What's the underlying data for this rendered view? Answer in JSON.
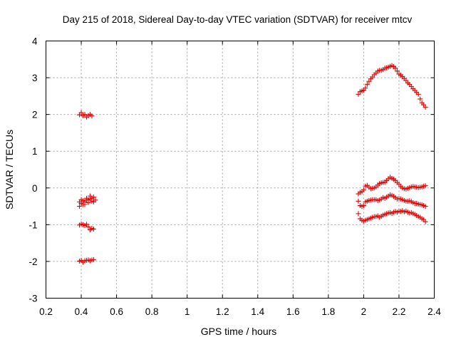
{
  "chart_data": {
    "type": "scatter",
    "title": "Day 215 of 2018, Sidereal Day-to-day VTEC variation (SDTVAR) for receiver mtcv",
    "xlabel": "GPS time / hours",
    "ylabel": "SDTVAR / TECUs",
    "xlim": [
      0.2,
      2.4
    ],
    "ylim": [
      -3,
      4
    ],
    "xticks": [
      0.2,
      0.4,
      0.6,
      0.8,
      1,
      1.2,
      1.4,
      1.6,
      1.8,
      2,
      2.2,
      2.4
    ],
    "xtick_labels": [
      "0.2",
      "0.4",
      "0.6",
      "0.8",
      "1",
      "1.2",
      "1.4",
      "1.6",
      "1.8",
      "2",
      "2.2",
      "2.4"
    ],
    "yticks": [
      -3,
      -2,
      -1,
      0,
      1,
      2,
      3,
      4
    ],
    "ytick_labels": [
      "-3",
      "-2",
      "-1",
      "0",
      "1",
      "2",
      "3",
      "4"
    ],
    "grid": true,
    "marker": "plus",
    "color": "#e00000",
    "series": [
      {
        "points": [
          [
            0.39,
            1.99
          ],
          [
            0.4,
            2.05
          ],
          [
            0.41,
            1.97
          ],
          [
            0.42,
            2.0
          ],
          [
            0.43,
            1.93
          ],
          [
            0.44,
            1.97
          ],
          [
            0.45,
            2.0
          ],
          [
            0.46,
            1.96
          ],
          [
            0.39,
            -0.5
          ],
          [
            0.4,
            -0.32
          ],
          [
            0.41,
            -0.45
          ],
          [
            0.42,
            -0.38
          ],
          [
            0.43,
            -0.33
          ],
          [
            0.44,
            -0.4
          ],
          [
            0.45,
            -0.3
          ],
          [
            0.46,
            -0.36
          ],
          [
            0.47,
            -0.25
          ],
          [
            0.48,
            -0.33
          ],
          [
            0.39,
            -0.38
          ],
          [
            0.4,
            -0.42
          ],
          [
            0.41,
            -0.35
          ],
          [
            0.42,
            -0.45
          ],
          [
            0.43,
            -0.28
          ],
          [
            0.44,
            -0.32
          ],
          [
            0.45,
            -0.22
          ],
          [
            0.46,
            -0.28
          ],
          [
            0.47,
            -0.38
          ],
          [
            0.39,
            -1.01
          ],
          [
            0.4,
            -0.98
          ],
          [
            0.41,
            -1.0
          ],
          [
            0.42,
            -1.02
          ],
          [
            0.43,
            -0.99
          ],
          [
            0.44,
            -1.06
          ],
          [
            0.45,
            -1.14
          ],
          [
            0.46,
            -1.1
          ],
          [
            0.47,
            -1.12
          ],
          [
            0.39,
            -1.99
          ],
          [
            0.4,
            -1.97
          ],
          [
            0.41,
            -2.02
          ],
          [
            0.42,
            -1.98
          ],
          [
            0.43,
            -1.97
          ],
          [
            0.44,
            -1.96
          ],
          [
            0.45,
            -1.98
          ],
          [
            0.46,
            -1.96
          ],
          [
            0.47,
            -1.95
          ]
        ]
      },
      {
        "points": [
          [
            1.97,
            2.55
          ],
          [
            1.98,
            2.62
          ],
          [
            1.99,
            2.64
          ],
          [
            2.0,
            2.66
          ],
          [
            2.01,
            2.72
          ],
          [
            2.02,
            2.82
          ],
          [
            2.03,
            2.9
          ],
          [
            2.04,
            2.97
          ],
          [
            2.05,
            3.02
          ],
          [
            2.06,
            3.08
          ],
          [
            2.07,
            3.13
          ],
          [
            2.08,
            3.18
          ],
          [
            2.09,
            3.2
          ],
          [
            2.1,
            3.2
          ],
          [
            2.11,
            3.22
          ],
          [
            2.12,
            3.26
          ],
          [
            2.13,
            3.27
          ],
          [
            2.14,
            3.29
          ],
          [
            2.15,
            3.31
          ],
          [
            2.16,
            3.33
          ],
          [
            2.17,
            3.3
          ],
          [
            2.18,
            3.26
          ],
          [
            2.19,
            3.18
          ],
          [
            2.2,
            3.1
          ],
          [
            2.21,
            3.07
          ],
          [
            2.22,
            3.03
          ],
          [
            2.23,
            2.98
          ],
          [
            2.24,
            2.92
          ],
          [
            2.25,
            2.86
          ],
          [
            2.26,
            2.82
          ],
          [
            2.27,
            2.76
          ],
          [
            2.28,
            2.7
          ],
          [
            2.29,
            2.65
          ],
          [
            2.3,
            2.6
          ],
          [
            2.31,
            2.55
          ],
          [
            2.32,
            2.42
          ],
          [
            2.33,
            2.32
          ],
          [
            2.34,
            2.26
          ],
          [
            2.35,
            2.2
          ]
        ]
      },
      {
        "points": [
          [
            1.97,
            -0.16
          ],
          [
            1.98,
            -0.12
          ],
          [
            1.99,
            -0.1
          ],
          [
            2.0,
            -0.05
          ],
          [
            2.01,
            0.05
          ],
          [
            2.02,
            0.07
          ],
          [
            2.03,
            0.02
          ],
          [
            2.04,
            -0.02
          ],
          [
            2.05,
            -0.01
          ],
          [
            2.06,
            0.0
          ],
          [
            2.07,
            0.03
          ],
          [
            2.08,
            0.08
          ],
          [
            2.09,
            0.12
          ],
          [
            2.1,
            0.14
          ],
          [
            2.11,
            0.15
          ],
          [
            2.12,
            0.16
          ],
          [
            2.13,
            0.2
          ],
          [
            2.14,
            0.25
          ],
          [
            2.15,
            0.29
          ],
          [
            2.16,
            0.26
          ],
          [
            2.17,
            0.24
          ],
          [
            2.18,
            0.2
          ],
          [
            2.19,
            0.15
          ],
          [
            2.2,
            0.1
          ],
          [
            2.21,
            0.04
          ],
          [
            2.22,
            0.0
          ],
          [
            2.23,
            -0.02
          ],
          [
            2.24,
            -0.03
          ],
          [
            2.25,
            -0.01
          ],
          [
            2.26,
            0.01
          ],
          [
            2.27,
            0.03
          ],
          [
            2.28,
            0.04
          ],
          [
            2.29,
            0.03
          ],
          [
            2.3,
            0.02
          ],
          [
            2.31,
            0.01
          ],
          [
            2.32,
            0.02
          ],
          [
            2.33,
            0.03
          ],
          [
            2.34,
            0.05
          ],
          [
            2.35,
            0.06
          ]
        ]
      },
      {
        "points": [
          [
            1.97,
            -0.36
          ],
          [
            1.98,
            -0.48
          ],
          [
            1.99,
            -0.5
          ],
          [
            2.0,
            -0.48
          ],
          [
            2.01,
            -0.38
          ],
          [
            2.02,
            -0.36
          ],
          [
            2.03,
            -0.34
          ],
          [
            2.04,
            -0.33
          ],
          [
            2.05,
            -0.32
          ],
          [
            2.06,
            -0.32
          ],
          [
            2.07,
            -0.32
          ],
          [
            2.08,
            -0.34
          ],
          [
            2.09,
            -0.33
          ],
          [
            2.1,
            -0.3
          ],
          [
            2.11,
            -0.26
          ],
          [
            2.12,
            -0.28
          ],
          [
            2.13,
            -0.25
          ],
          [
            2.14,
            -0.22
          ],
          [
            2.15,
            -0.19
          ],
          [
            2.16,
            -0.2
          ],
          [
            2.17,
            -0.23
          ],
          [
            2.18,
            -0.26
          ],
          [
            2.19,
            -0.3
          ],
          [
            2.2,
            -0.29
          ],
          [
            2.21,
            -0.3
          ],
          [
            2.22,
            -0.32
          ],
          [
            2.23,
            -0.34
          ],
          [
            2.24,
            -0.36
          ],
          [
            2.25,
            -0.36
          ],
          [
            2.26,
            -0.35
          ],
          [
            2.27,
            -0.37
          ],
          [
            2.28,
            -0.4
          ],
          [
            2.29,
            -0.42
          ],
          [
            2.3,
            -0.42
          ],
          [
            2.31,
            -0.44
          ],
          [
            2.32,
            -0.45
          ],
          [
            2.33,
            -0.46
          ],
          [
            2.34,
            -0.48
          ],
          [
            2.35,
            -0.5
          ]
        ]
      },
      {
        "points": [
          [
            1.97,
            -0.7
          ],
          [
            1.98,
            -0.84
          ],
          [
            1.99,
            -0.88
          ],
          [
            2.0,
            -0.9
          ],
          [
            2.01,
            -0.88
          ],
          [
            2.02,
            -0.86
          ],
          [
            2.03,
            -0.84
          ],
          [
            2.04,
            -0.82
          ],
          [
            2.05,
            -0.8
          ],
          [
            2.06,
            -0.78
          ],
          [
            2.07,
            -0.78
          ],
          [
            2.08,
            -0.76
          ],
          [
            2.09,
            -0.8
          ],
          [
            2.1,
            -0.77
          ],
          [
            2.11,
            -0.74
          ],
          [
            2.12,
            -0.72
          ],
          [
            2.13,
            -0.7
          ],
          [
            2.14,
            -0.68
          ],
          [
            2.15,
            -0.67
          ],
          [
            2.16,
            -0.69
          ],
          [
            2.17,
            -0.66
          ],
          [
            2.18,
            -0.64
          ],
          [
            2.19,
            -0.66
          ],
          [
            2.2,
            -0.63
          ],
          [
            2.21,
            -0.64
          ],
          [
            2.22,
            -0.62
          ],
          [
            2.23,
            -0.65
          ],
          [
            2.24,
            -0.63
          ],
          [
            2.25,
            -0.66
          ],
          [
            2.26,
            -0.68
          ],
          [
            2.27,
            -0.67
          ],
          [
            2.28,
            -0.7
          ],
          [
            2.29,
            -0.72
          ],
          [
            2.3,
            -0.75
          ],
          [
            2.31,
            -0.78
          ],
          [
            2.32,
            -0.8
          ],
          [
            2.33,
            -0.84
          ],
          [
            2.34,
            -0.86
          ],
          [
            2.35,
            -0.92
          ]
        ]
      }
    ]
  }
}
